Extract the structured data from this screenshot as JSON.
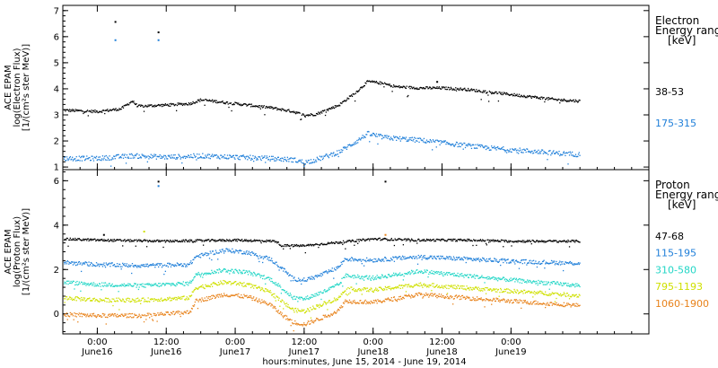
{
  "chart_data": [
    {
      "type": "scatter",
      "ylabel_lines": [
        "ACE EPAM",
        "log(Electron Flux)",
        "[1/(cm²s ster MeV)]"
      ],
      "legend_title": [
        "Electron",
        "Energy range",
        "[keV]"
      ],
      "ylim": [
        0.9,
        7.2
      ],
      "yticks": [
        1,
        2,
        3,
        4,
        5,
        6,
        7
      ],
      "series": [
        {
          "name": "38-53",
          "color": "#000000",
          "points": [
            [
              -6,
              3.2
            ],
            [
              0,
              3.15
            ],
            [
              4,
              3.25
            ],
            [
              5,
              3.4
            ],
            [
              6,
              3.55
            ],
            [
              7,
              3.35
            ],
            [
              12,
              3.4
            ],
            [
              16,
              3.45
            ],
            [
              18,
              3.6
            ],
            [
              24,
              3.45
            ],
            [
              30,
              3.3
            ],
            [
              34,
              3.15
            ],
            [
              36,
              3.0
            ],
            [
              38,
              3.05
            ],
            [
              42,
              3.4
            ],
            [
              45,
              3.9
            ],
            [
              47,
              4.3
            ],
            [
              49,
              4.25
            ],
            [
              52,
              4.1
            ],
            [
              56,
              4.05
            ],
            [
              60,
              4.05
            ],
            [
              64,
              4.0
            ],
            [
              70,
              3.85
            ],
            [
              76,
              3.7
            ],
            [
              80,
              3.6
            ],
            [
              84,
              3.55
            ]
          ],
          "outliers": [
            [
              3,
              6.6
            ],
            [
              10.5,
              6.2
            ],
            [
              59,
              4.3
            ]
          ]
        },
        {
          "name": "175-315",
          "color": "#1f7fd9",
          "points": [
            [
              -6,
              1.35
            ],
            [
              0,
              1.35
            ],
            [
              6,
              1.45
            ],
            [
              12,
              1.4
            ],
            [
              18,
              1.45
            ],
            [
              24,
              1.4
            ],
            [
              30,
              1.35
            ],
            [
              34,
              1.3
            ],
            [
              36,
              1.2
            ],
            [
              38,
              1.3
            ],
            [
              42,
              1.6
            ],
            [
              45,
              2.0
            ],
            [
              47,
              2.3
            ],
            [
              50,
              2.15
            ],
            [
              56,
              2.05
            ],
            [
              62,
              1.9
            ],
            [
              68,
              1.75
            ],
            [
              74,
              1.65
            ],
            [
              80,
              1.55
            ],
            [
              84,
              1.5
            ]
          ],
          "outliers": [
            [
              3,
              5.9
            ],
            [
              10.5,
              5.9
            ]
          ]
        }
      ]
    },
    {
      "type": "scatter",
      "ylabel_lines": [
        "ACE EPAM",
        "log(Proton Flux)",
        "[1/(cm²s ster MeV)]"
      ],
      "legend_title": [
        "Proton",
        "Energy range",
        "[keV]"
      ],
      "ylim": [
        -0.9,
        6.5
      ],
      "yticks": [
        0,
        2,
        4,
        6
      ],
      "xlabel": "hours:minutes, June 15, 2014 - June 19, 2014",
      "xlim": [
        -6,
        96
      ],
      "xticks": [
        {
          "hour": 0,
          "time": "0:00",
          "date": "June16"
        },
        {
          "hour": 12,
          "time": "12:00",
          "date": "June16"
        },
        {
          "hour": 24,
          "time": "0:00",
          "date": "June17"
        },
        {
          "hour": 36,
          "time": "12:00",
          "date": "June17"
        },
        {
          "hour": 48,
          "time": "0:00",
          "date": "June18"
        },
        {
          "hour": 60,
          "time": "12:00",
          "date": "June18"
        },
        {
          "hour": 72,
          "time": "0:00",
          "date": "June19"
        }
      ],
      "series": [
        {
          "name": "47-68",
          "color": "#000000",
          "points": [
            [
              -6,
              3.4
            ],
            [
              0,
              3.35
            ],
            [
              12,
              3.3
            ],
            [
              24,
              3.35
            ],
            [
              31,
              3.3
            ],
            [
              32,
              3.1
            ],
            [
              36,
              3.1
            ],
            [
              40,
              3.2
            ],
            [
              44,
              3.3
            ],
            [
              48,
              3.4
            ],
            [
              56,
              3.35
            ],
            [
              64,
              3.35
            ],
            [
              72,
              3.3
            ],
            [
              84,
              3.3
            ]
          ],
          "outliers": [
            [
              10.5,
              6.0
            ],
            [
              50,
              6.0
            ],
            [
              1,
              3.6
            ]
          ]
        },
        {
          "name": "115-195",
          "color": "#1f7fd9",
          "points": [
            [
              -6,
              2.35
            ],
            [
              0,
              2.25
            ],
            [
              8,
              2.2
            ],
            [
              16,
              2.25
            ],
            [
              17,
              2.6
            ],
            [
              22,
              2.9
            ],
            [
              26,
              2.8
            ],
            [
              30,
              2.5
            ],
            [
              32,
              2.1
            ],
            [
              34,
              1.6
            ],
            [
              36,
              1.55
            ],
            [
              38,
              1.7
            ],
            [
              40,
              1.9
            ],
            [
              42,
              2.15
            ],
            [
              43,
              2.5
            ],
            [
              48,
              2.45
            ],
            [
              56,
              2.6
            ],
            [
              64,
              2.5
            ],
            [
              72,
              2.4
            ],
            [
              84,
              2.3
            ]
          ],
          "outliers": [
            [
              10.5,
              5.8
            ]
          ]
        },
        {
          "name": "310-580",
          "color": "#22d6c6",
          "points": [
            [
              -6,
              1.45
            ],
            [
              0,
              1.35
            ],
            [
              8,
              1.3
            ],
            [
              16,
              1.4
            ],
            [
              17,
              1.8
            ],
            [
              22,
              2.0
            ],
            [
              26,
              1.9
            ],
            [
              30,
              1.6
            ],
            [
              32,
              1.2
            ],
            [
              34,
              0.75
            ],
            [
              36,
              0.7
            ],
            [
              38,
              0.9
            ],
            [
              40,
              1.1
            ],
            [
              42,
              1.35
            ],
            [
              43,
              1.75
            ],
            [
              48,
              1.65
            ],
            [
              56,
              1.95
            ],
            [
              64,
              1.75
            ],
            [
              72,
              1.55
            ],
            [
              84,
              1.3
            ]
          ],
          "outliers": []
        },
        {
          "name": "795-1193",
          "color": "#cfe000",
          "points": [
            [
              -6,
              0.75
            ],
            [
              0,
              0.65
            ],
            [
              8,
              0.65
            ],
            [
              16,
              0.75
            ],
            [
              17,
              1.2
            ],
            [
              22,
              1.45
            ],
            [
              26,
              1.35
            ],
            [
              30,
              1.0
            ],
            [
              32,
              0.6
            ],
            [
              34,
              0.2
            ],
            [
              36,
              0.15
            ],
            [
              38,
              0.35
            ],
            [
              40,
              0.55
            ],
            [
              42,
              0.75
            ],
            [
              43,
              1.15
            ],
            [
              48,
              1.1
            ],
            [
              56,
              1.35
            ],
            [
              64,
              1.2
            ],
            [
              72,
              1.05
            ],
            [
              84,
              0.85
            ]
          ],
          "outliers": [
            [
              8,
              3.75
            ]
          ]
        },
        {
          "name": "1060-1900",
          "color": "#e8821a",
          "points": [
            [
              -6,
              0.0
            ],
            [
              0,
              -0.05
            ],
            [
              8,
              -0.05
            ],
            [
              16,
              0.1
            ],
            [
              17,
              0.6
            ],
            [
              22,
              0.9
            ],
            [
              26,
              0.8
            ],
            [
              30,
              0.45
            ],
            [
              32,
              0.0
            ],
            [
              34,
              -0.35
            ],
            [
              36,
              -0.45
            ],
            [
              38,
              -0.25
            ],
            [
              40,
              -0.05
            ],
            [
              42,
              0.2
            ],
            [
              43,
              0.6
            ],
            [
              48,
              0.55
            ],
            [
              56,
              0.9
            ],
            [
              64,
              0.75
            ],
            [
              72,
              0.6
            ],
            [
              84,
              0.4
            ]
          ],
          "outliers": [
            [
              50,
              3.6
            ]
          ]
        }
      ]
    }
  ]
}
